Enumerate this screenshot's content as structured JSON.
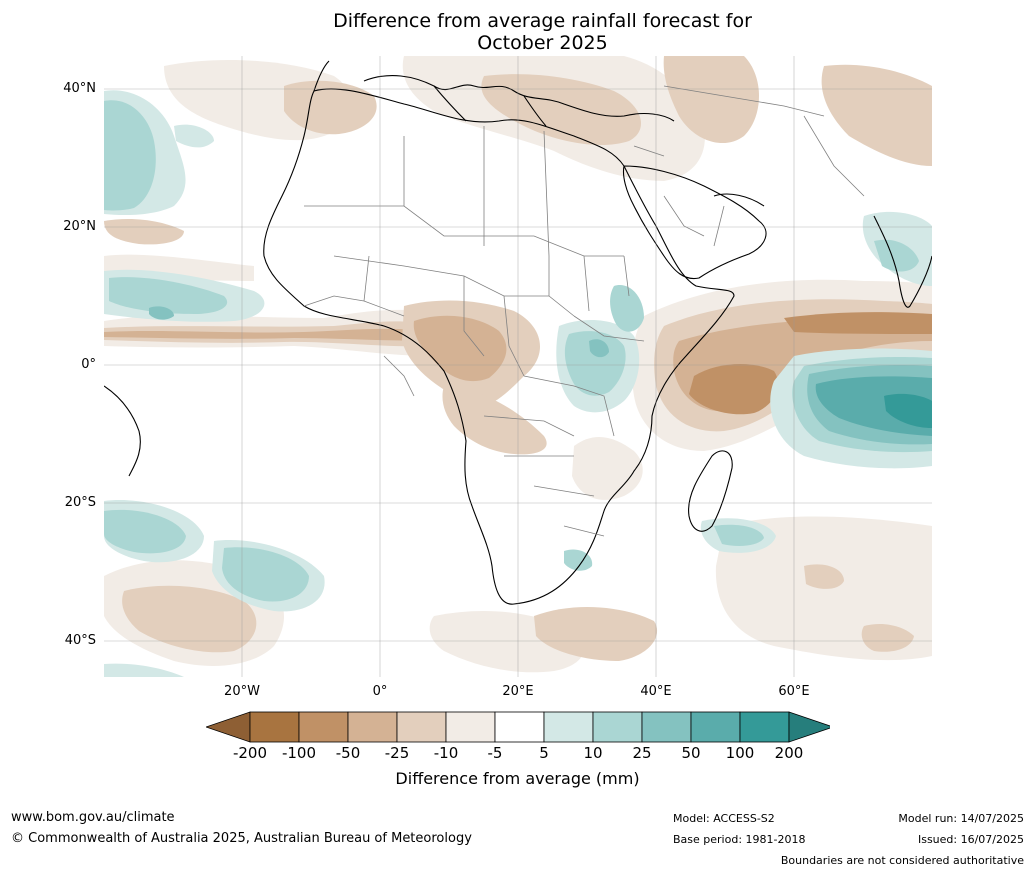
{
  "title": {
    "line1": "Difference from average rainfall forecast for",
    "line2": "October 2025"
  },
  "map": {
    "lat_labels": [
      "40°N",
      "20°N",
      "0°",
      "20°S",
      "40°S"
    ],
    "lon_labels": [
      "20°W",
      "0°",
      "20°E",
      "40°E",
      "60°E"
    ],
    "region": "Africa",
    "colors": {
      "dry_200": "#a87440",
      "dry_100": "#c09166",
      "dry_50": "#d4b294",
      "dry_25": "#e3cfbd",
      "dry_10": "#f2ece6",
      "neutral": "#ffffff",
      "wet_5": "#d3e8e6",
      "wet_10": "#aad6d3",
      "wet_25": "#84c2c0",
      "wet_50": "#5aacab",
      "wet_100": "#349a98"
    }
  },
  "colorbar": {
    "ticks": [
      "-200",
      "-100",
      "-50",
      "-25",
      "-10",
      "-5",
      "5",
      "10",
      "25",
      "50",
      "100",
      "200"
    ],
    "colors": [
      "#a87440",
      "#c09166",
      "#d4b294",
      "#e3cfbd",
      "#f2ece6",
      "#ffffff",
      "#d3e8e6",
      "#aad6d3",
      "#84c2c0",
      "#5aacab",
      "#349a98"
    ],
    "under_color": "#8e5f34",
    "over_color": "#267e7c",
    "label": "Difference from average (mm)"
  },
  "footer": {
    "url": "www.bom.gov.au/climate",
    "copyright": "© Commonwealth of Australia 2025, Australian Bureau of Meteorology",
    "model": "Model: ACCESS-S2",
    "base_period": "Base period: 1981-2018",
    "model_run": "Model run: 14/07/2025",
    "issued": "Issued: 16/07/2025",
    "disclaimer": "Boundaries are not considered authoritative"
  }
}
